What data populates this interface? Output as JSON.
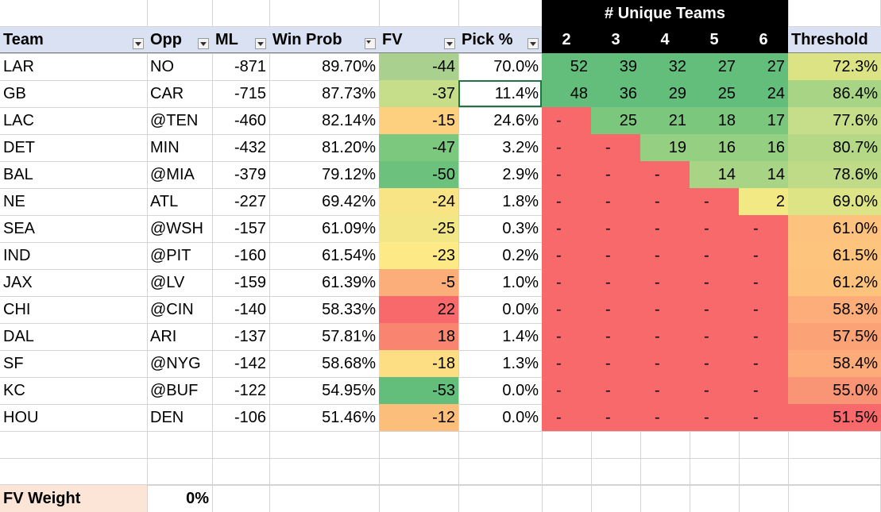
{
  "super_header": "# Unique Teams",
  "headers": {
    "team": "Team",
    "opp": "Opp",
    "ml": "ML",
    "win_prob": "Win Prob",
    "fv": "FV",
    "pick_pct": "Pick %",
    "u2": "2",
    "u3": "3",
    "u4": "4",
    "u5": "5",
    "u6": "6",
    "threshold": "Threshold"
  },
  "rows": [
    {
      "team": "LAR",
      "opp": "NO",
      "ml": "-871",
      "win_prob": "89.70%",
      "fv": "-44",
      "pick_pct": "70.0%",
      "u": [
        "52",
        "39",
        "32",
        "27",
        "27"
      ],
      "threshold": "72.3%"
    },
    {
      "team": "GB",
      "opp": "CAR",
      "ml": "-715",
      "win_prob": "87.73%",
      "fv": "-37",
      "pick_pct": "11.4%",
      "u": [
        "48",
        "36",
        "29",
        "25",
        "24"
      ],
      "threshold": "86.4%"
    },
    {
      "team": "LAC",
      "opp": "@TEN",
      "ml": "-460",
      "win_prob": "82.14%",
      "fv": "-15",
      "pick_pct": "24.6%",
      "u": [
        "-",
        "25",
        "21",
        "18",
        "17"
      ],
      "threshold": "77.6%"
    },
    {
      "team": "DET",
      "opp": "MIN",
      "ml": "-432",
      "win_prob": "81.20%",
      "fv": "-47",
      "pick_pct": "3.2%",
      "u": [
        "-",
        "-",
        "19",
        "16",
        "16"
      ],
      "threshold": "80.7%"
    },
    {
      "team": "BAL",
      "opp": "@MIA",
      "ml": "-379",
      "win_prob": "79.12%",
      "fv": "-50",
      "pick_pct": "2.9%",
      "u": [
        "-",
        "-",
        "-",
        "14",
        "14"
      ],
      "threshold": "78.6%"
    },
    {
      "team": "NE",
      "opp": "ATL",
      "ml": "-227",
      "win_prob": "69.42%",
      "fv": "-24",
      "pick_pct": "1.8%",
      "u": [
        "-",
        "-",
        "-",
        "-",
        "2"
      ],
      "threshold": "69.0%"
    },
    {
      "team": "SEA",
      "opp": "@WSH",
      "ml": "-157",
      "win_prob": "61.09%",
      "fv": "-25",
      "pick_pct": "0.3%",
      "u": [
        "-",
        "-",
        "-",
        "-",
        "-"
      ],
      "threshold": "61.0%"
    },
    {
      "team": "IND",
      "opp": "@PIT",
      "ml": "-160",
      "win_prob": "61.54%",
      "fv": "-23",
      "pick_pct": "0.2%",
      "u": [
        "-",
        "-",
        "-",
        "-",
        "-"
      ],
      "threshold": "61.5%"
    },
    {
      "team": "JAX",
      "opp": "@LV",
      "ml": "-159",
      "win_prob": "61.39%",
      "fv": "-5",
      "pick_pct": "1.0%",
      "u": [
        "-",
        "-",
        "-",
        "-",
        "-"
      ],
      "threshold": "61.2%"
    },
    {
      "team": "CHI",
      "opp": "@CIN",
      "ml": "-140",
      "win_prob": "58.33%",
      "fv": "22",
      "pick_pct": "0.0%",
      "u": [
        "-",
        "-",
        "-",
        "-",
        "-"
      ],
      "threshold": "58.3%"
    },
    {
      "team": "DAL",
      "opp": "ARI",
      "ml": "-137",
      "win_prob": "57.81%",
      "fv": "18",
      "pick_pct": "1.4%",
      "u": [
        "-",
        "-",
        "-",
        "-",
        "-"
      ],
      "threshold": "57.5%"
    },
    {
      "team": "SF",
      "opp": "@NYG",
      "ml": "-142",
      "win_prob": "58.68%",
      "fv": "-18",
      "pick_pct": "1.3%",
      "u": [
        "-",
        "-",
        "-",
        "-",
        "-"
      ],
      "threshold": "58.4%"
    },
    {
      "team": "KC",
      "opp": "@BUF",
      "ml": "-122",
      "win_prob": "54.95%",
      "fv": "-53",
      "pick_pct": "0.0%",
      "u": [
        "-",
        "-",
        "-",
        "-",
        "-"
      ],
      "threshold": "55.0%"
    },
    {
      "team": "HOU",
      "opp": "DEN",
      "ml": "-106",
      "win_prob": "51.46%",
      "fv": "-12",
      "pick_pct": "0.0%",
      "u": [
        "-",
        "-",
        "-",
        "-",
        "-"
      ],
      "threshold": "51.5%"
    }
  ],
  "fv_colors": [
    "#A9D08E",
    "#C6DE8A",
    "#FCD07F",
    "#7DC87F",
    "#6CC27D",
    "#F8E484",
    "#F3E686",
    "#FDE985",
    "#FBAE79",
    "#F8696B",
    "#F98570",
    "#FEDE83",
    "#63BE7B",
    "#FCBE7B"
  ],
  "unique_colors": [
    [
      "#63BE7B",
      "#63BE7B",
      "#63BE7B",
      "#63BE7B",
      "#63BE7B"
    ],
    [
      "#63BE7B",
      "#63BE7B",
      "#63BE7B",
      "#63BE7B",
      "#63BE7B"
    ],
    [
      "#F8696B",
      "#7CC77E",
      "#7CC77E",
      "#7CC77E",
      "#7CC77E"
    ],
    [
      "#F8696B",
      "#F8696B",
      "#94CF82",
      "#94CF82",
      "#94CF82"
    ],
    [
      "#F8696B",
      "#F8696B",
      "#F8696B",
      "#A7D585",
      "#A7D585"
    ],
    [
      "#F8696B",
      "#F8696B",
      "#F8696B",
      "#F8696B",
      "#F2E884"
    ],
    [
      "#F8696B",
      "#F8696B",
      "#F8696B",
      "#F8696B",
      "#F8696B"
    ],
    [
      "#F8696B",
      "#F8696B",
      "#F8696B",
      "#F8696B",
      "#F8696B"
    ],
    [
      "#F8696B",
      "#F8696B",
      "#F8696B",
      "#F8696B",
      "#F8696B"
    ],
    [
      "#F8696B",
      "#F8696B",
      "#F8696B",
      "#F8696B",
      "#F8696B"
    ],
    [
      "#F8696B",
      "#F8696B",
      "#F8696B",
      "#F8696B",
      "#F8696B"
    ],
    [
      "#F8696B",
      "#F8696B",
      "#F8696B",
      "#F8696B",
      "#F8696B"
    ],
    [
      "#F8696B",
      "#F8696B",
      "#F8696B",
      "#F8696B",
      "#F8696B"
    ],
    [
      "#F8696B",
      "#F8696B",
      "#F8696B",
      "#F8696B",
      "#F8696B"
    ]
  ],
  "threshold_colors": [
    "#DCE385",
    "#A8D585",
    "#C6DE8A",
    "#B4D885",
    "#BFDB87",
    "#DDE486",
    "#FDC27D",
    "#FDC47E",
    "#FDC37D",
    "#FCAD79",
    "#FBA377",
    "#FCAB79",
    "#F99575",
    "#F8696B"
  ],
  "fv_weight_label": "FV Weight",
  "fv_weight_value": "0%",
  "fv_weight_label_bg": "#FCE4D6"
}
